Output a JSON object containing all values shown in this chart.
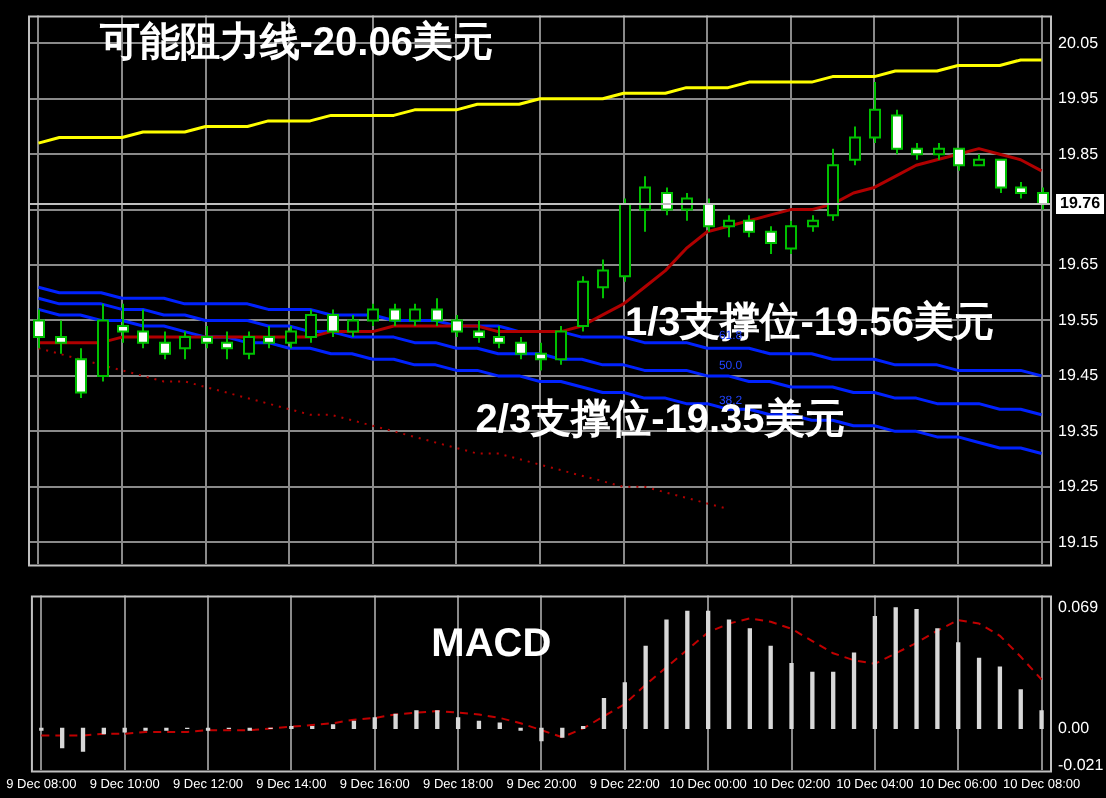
{
  "chart_data": [
    {
      "type": "candlestick",
      "categories": [
        null,
        null,
        null,
        null,
        null,
        null,
        null,
        null,
        null,
        null,
        null,
        null,
        null,
        null,
        null,
        null,
        null,
        null,
        null,
        null,
        null,
        null,
        null,
        null,
        null,
        null,
        null,
        null,
        null,
        null,
        null,
        null,
        null,
        null,
        null,
        null,
        null,
        null,
        null,
        null,
        null,
        null,
        null,
        null,
        null,
        null,
        null,
        null,
        null
      ],
      "ohlc": [
        [
          19.55,
          19.57,
          19.5,
          19.52
        ],
        [
          19.52,
          19.55,
          19.49,
          19.51
        ],
        [
          19.48,
          19.5,
          19.41,
          19.42
        ],
        [
          19.45,
          19.58,
          19.44,
          19.55
        ],
        [
          19.54,
          19.58,
          19.51,
          19.53
        ],
        [
          19.53,
          19.57,
          19.5,
          19.51
        ],
        [
          19.51,
          19.53,
          19.48,
          19.49
        ],
        [
          19.5,
          19.53,
          19.48,
          19.52
        ],
        [
          19.52,
          19.54,
          19.5,
          19.51
        ],
        [
          19.51,
          19.53,
          19.48,
          19.5
        ],
        [
          19.49,
          19.53,
          19.48,
          19.52
        ],
        [
          19.52,
          19.54,
          19.5,
          19.51
        ],
        [
          19.51,
          19.54,
          19.5,
          19.53
        ],
        [
          19.52,
          19.57,
          19.51,
          19.56
        ],
        [
          19.56,
          19.57,
          19.52,
          19.53
        ],
        [
          19.53,
          19.56,
          19.52,
          19.55
        ],
        [
          19.55,
          19.58,
          19.54,
          19.57
        ],
        [
          19.57,
          19.58,
          19.54,
          19.55
        ],
        [
          19.55,
          19.58,
          19.54,
          19.57
        ],
        [
          19.57,
          19.59,
          19.54,
          19.55
        ],
        [
          19.55,
          19.56,
          19.52,
          19.53
        ],
        [
          19.53,
          19.55,
          19.51,
          19.52
        ],
        [
          19.52,
          19.54,
          19.5,
          19.51
        ],
        [
          19.51,
          19.52,
          19.48,
          19.49
        ],
        [
          19.49,
          19.51,
          19.46,
          19.48
        ],
        [
          19.48,
          19.54,
          19.47,
          19.53
        ],
        [
          19.54,
          19.63,
          19.53,
          19.62
        ],
        [
          19.61,
          19.66,
          19.59,
          19.64
        ],
        [
          19.63,
          19.77,
          19.62,
          19.76
        ],
        [
          19.75,
          19.81,
          19.71,
          19.79
        ],
        [
          19.78,
          19.79,
          19.74,
          19.75
        ],
        [
          19.75,
          19.78,
          19.73,
          19.77
        ],
        [
          19.76,
          19.77,
          19.71,
          19.72
        ],
        [
          19.72,
          19.74,
          19.7,
          19.73
        ],
        [
          19.73,
          19.74,
          19.7,
          19.71
        ],
        [
          19.71,
          19.72,
          19.67,
          19.69
        ],
        [
          19.68,
          19.73,
          19.67,
          19.72
        ],
        [
          19.72,
          19.74,
          19.71,
          19.73
        ],
        [
          19.74,
          19.86,
          19.73,
          19.83
        ],
        [
          19.84,
          19.9,
          19.83,
          19.88
        ],
        [
          19.88,
          19.98,
          19.87,
          19.93
        ],
        [
          19.92,
          19.93,
          19.85,
          19.86
        ],
        [
          19.86,
          19.87,
          19.84,
          19.85
        ],
        [
          19.85,
          19.87,
          19.84,
          19.86
        ],
        [
          19.86,
          19.86,
          19.82,
          19.83
        ],
        [
          19.83,
          19.85,
          19.83,
          19.84
        ],
        [
          19.84,
          19.84,
          19.78,
          19.79
        ],
        [
          19.79,
          19.8,
          19.77,
          19.78
        ],
        [
          19.78,
          19.79,
          19.75,
          19.76
        ]
      ],
      "series": [
        {
          "type": "line",
          "color": "#b00000",
          "values": [
            19.51,
            19.51,
            19.51,
            19.51,
            19.52,
            19.52,
            19.52,
            19.52,
            19.52,
            19.52,
            19.52,
            19.52,
            19.52,
            19.52,
            19.53,
            19.53,
            19.53,
            19.54,
            19.54,
            19.54,
            19.54,
            19.54,
            19.53,
            19.53,
            19.53,
            19.53,
            19.54,
            19.56,
            19.58,
            19.61,
            19.64,
            19.68,
            19.71,
            19.72,
            19.73,
            19.74,
            19.75,
            19.75,
            19.76,
            19.78,
            19.79,
            19.81,
            19.83,
            19.84,
            19.85,
            19.86,
            19.85,
            19.84,
            19.82
          ]
        },
        {
          "type": "line",
          "color": "#ffff00",
          "values": [
            19.87,
            19.88,
            19.88,
            19.88,
            19.88,
            19.89,
            19.89,
            19.89,
            19.9,
            19.9,
            19.9,
            19.91,
            19.91,
            19.91,
            19.92,
            19.92,
            19.92,
            19.92,
            19.93,
            19.93,
            19.93,
            19.94,
            19.94,
            19.94,
            19.95,
            19.95,
            19.95,
            19.95,
            19.96,
            19.96,
            19.96,
            19.97,
            19.97,
            19.97,
            19.98,
            19.98,
            19.98,
            19.98,
            19.99,
            19.99,
            19.99,
            20.0,
            20.0,
            20.0,
            20.01,
            20.01,
            20.01,
            20.02,
            20.02
          ]
        },
        {
          "type": "line",
          "color": "#0022ff",
          "values": [
            19.61,
            19.6,
            19.6,
            19.6,
            19.59,
            19.59,
            19.59,
            19.58,
            19.58,
            19.58,
            19.58,
            19.57,
            19.57,
            19.57,
            19.56,
            19.56,
            19.56,
            19.55,
            19.55,
            19.55,
            19.54,
            19.54,
            19.54,
            19.53,
            19.53,
            19.53,
            19.52,
            19.52,
            19.52,
            19.51,
            19.51,
            19.51,
            19.5,
            19.5,
            19.5,
            19.49,
            19.49,
            19.49,
            19.48,
            19.48,
            19.48,
            19.47,
            19.47,
            19.47,
            19.46,
            19.46,
            19.46,
            19.46,
            19.45
          ]
        },
        {
          "type": "line",
          "color": "#0022ff",
          "values": [
            19.59,
            19.58,
            19.58,
            19.58,
            19.57,
            19.57,
            19.56,
            19.56,
            19.55,
            19.55,
            19.55,
            19.54,
            19.54,
            19.53,
            19.53,
            19.52,
            19.52,
            19.52,
            19.51,
            19.51,
            19.5,
            19.5,
            19.49,
            19.49,
            19.49,
            19.48,
            19.48,
            19.47,
            19.47,
            19.46,
            19.46,
            19.46,
            19.45,
            19.45,
            19.44,
            19.44,
            19.43,
            19.43,
            19.43,
            19.42,
            19.42,
            19.41,
            19.41,
            19.4,
            19.4,
            19.4,
            19.39,
            19.39,
            19.38
          ]
        },
        {
          "type": "line",
          "color": "#0022ff",
          "values": [
            19.57,
            19.56,
            19.56,
            19.55,
            19.55,
            19.54,
            19.54,
            19.53,
            19.52,
            19.52,
            19.51,
            19.51,
            19.5,
            19.5,
            19.49,
            19.49,
            19.48,
            19.48,
            19.47,
            19.47,
            19.46,
            19.46,
            19.45,
            19.45,
            19.44,
            19.44,
            19.43,
            19.42,
            19.42,
            19.41,
            19.41,
            19.4,
            19.4,
            19.39,
            19.39,
            19.38,
            19.38,
            19.37,
            19.37,
            19.36,
            19.36,
            19.35,
            19.35,
            19.34,
            19.34,
            19.33,
            19.32,
            19.32,
            19.31
          ]
        },
        {
          "type": "line",
          "color": "#b00000",
          "line_style": "dotted",
          "values": [
            19.5,
            19.49,
            19.48,
            19.47,
            19.46,
            19.45,
            19.44,
            19.44,
            19.43,
            19.42,
            19.41,
            19.4,
            19.39,
            19.38,
            19.38,
            19.37,
            19.36,
            19.35,
            19.34,
            19.33,
            19.32,
            19.31,
            19.31,
            19.3,
            19.29,
            19.28,
            19.27,
            19.26,
            19.25,
            19.25,
            19.24,
            19.23,
            19.22,
            19.21,
            null,
            null,
            null,
            null,
            null,
            null,
            null,
            null,
            null,
            null,
            null,
            null,
            null,
            null,
            null
          ]
        }
      ],
      "ylim": [
        19.11,
        20.1
      ],
      "yticks": [
        19.15,
        19.25,
        19.35,
        19.45,
        19.55,
        19.65,
        {
          "value": 19.75,
          "label": null
        },
        19.85,
        19.95,
        20.05
      ],
      "tick_labels": "y",
      "grid": true,
      "ref_lines": [
        {
          "axis": "y",
          "value": 19.76,
          "label": "19.76",
          "color": "#c0c0c0"
        }
      ],
      "annotations": [
        "可能阻力线-20.06美元",
        "1/3支撑位-19.56美元",
        "2/3支撑位-19.35美元",
        "61.8",
        "50.0",
        "38.2"
      ]
    },
    {
      "type": "bar",
      "categories": [
        "9 Dec 08:00",
        null,
        null,
        null,
        "9 Dec 10:00",
        null,
        null,
        null,
        "9 Dec 12:00",
        null,
        null,
        null,
        "9 Dec 14:00",
        null,
        null,
        null,
        "9 Dec 16:00",
        null,
        null,
        null,
        "9 Dec 18:00",
        null,
        null,
        null,
        "9 Dec 20:00",
        null,
        null,
        null,
        "9 Dec 22:00",
        null,
        null,
        null,
        "10 Dec 00:00",
        null,
        null,
        null,
        "10 Dec 02:00",
        null,
        null,
        null,
        "10 Dec 04:00",
        null,
        null,
        null,
        "10 Dec 06:00",
        null,
        null,
        null,
        "10 Dec 08:00"
      ],
      "series": [
        {
          "type": "bar",
          "color": "#d8d8d8",
          "values": [
            -0.001,
            -0.011,
            -0.013,
            -0.003,
            -0.002,
            -0.001,
            -0.001,
            0.0,
            -0.001,
            0.0,
            -0.001,
            0.0,
            0.001,
            0.001,
            0.002,
            0.004,
            0.006,
            0.008,
            0.01,
            0.01,
            0.006,
            0.004,
            0.003,
            -0.001,
            -0.007,
            -0.005,
            0.001,
            0.017,
            0.026,
            0.047,
            0.062,
            0.067,
            0.067,
            0.062,
            0.057,
            0.047,
            0.037,
            0.032,
            0.032,
            0.043,
            0.064,
            0.069,
            0.068,
            0.057,
            0.049,
            0.04,
            0.035,
            0.022,
            0.01
          ]
        },
        {
          "type": "line",
          "color": "#c00000",
          "line_style": "dashed",
          "values": [
            -0.004,
            -0.004,
            -0.004,
            -0.003,
            -0.003,
            -0.002,
            -0.002,
            -0.002,
            -0.001,
            -0.001,
            -0.001,
            0.0,
            0.001,
            0.002,
            0.003,
            0.005,
            0.006,
            0.008,
            0.009,
            0.01,
            0.009,
            0.008,
            0.006,
            0.003,
            -0.001,
            -0.005,
            0.0,
            0.007,
            0.014,
            0.025,
            0.035,
            0.045,
            0.055,
            0.06,
            0.063,
            0.061,
            0.057,
            0.05,
            0.043,
            0.039,
            0.037,
            0.043,
            0.049,
            0.056,
            0.062,
            0.06,
            0.053,
            0.041,
            0.028
          ]
        }
      ],
      "ylim": [
        -0.024,
        0.076
      ],
      "yticks": [
        -0.021,
        {
          "value": 0,
          "label": "0.00"
        },
        0.069
      ],
      "grid": "x",
      "annotations": [
        "MACD"
      ]
    }
  ]
}
